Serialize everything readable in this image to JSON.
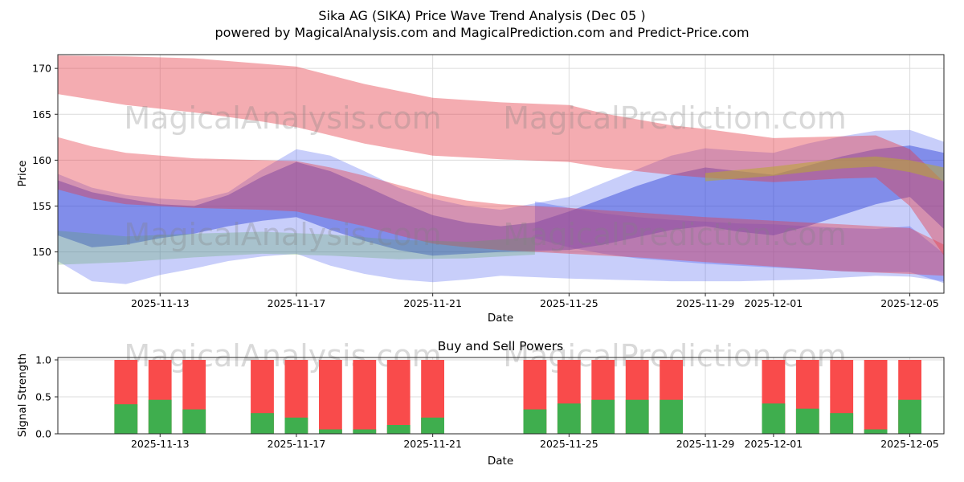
{
  "figure": {
    "title": "Sika AG (SIKA) Price Wave Trend Analysis (Dec 05 )",
    "subtitle": "powered by MagicalAnalysis.com and MagicalPrediction.com and Predict-Price.com"
  },
  "watermarks": {
    "left": "MagicalAnalysis.com",
    "right": "MagicalPrediction.com"
  },
  "chart_data": [
    {
      "type": "area",
      "name": "price-wave-trend",
      "xlabel": "Date",
      "ylabel": "Price",
      "ylim": [
        145.5,
        171.5
      ],
      "xlim_days": [
        0,
        26
      ],
      "grid": true,
      "xticks": [
        {
          "day": 3,
          "label": "2025-11-13"
        },
        {
          "day": 7,
          "label": "2025-11-17"
        },
        {
          "day": 11,
          "label": "2025-11-21"
        },
        {
          "day": 15,
          "label": "2025-11-25"
        },
        {
          "day": 19,
          "label": "2025-11-29"
        },
        {
          "day": 21,
          "label": "2025-12-01"
        },
        {
          "day": 25,
          "label": "2025-12-05"
        }
      ],
      "yticks": [
        150,
        155,
        160,
        165,
        170
      ],
      "bands": [
        {
          "name": "blue-wide",
          "color": "#4a5cf0",
          "opacity": 0.3,
          "points": [
            [
              0,
              158.5,
              149.0
            ],
            [
              1,
              157.0,
              146.8
            ],
            [
              2,
              156.2,
              146.5
            ],
            [
              3,
              155.8,
              147.5
            ],
            [
              4,
              155.6,
              148.2
            ],
            [
              5,
              156.5,
              149.0
            ],
            [
              6,
              159.0,
              149.5
            ],
            [
              7,
              161.2,
              149.8
            ],
            [
              8,
              160.5,
              148.5
            ],
            [
              9,
              158.8,
              147.6
            ],
            [
              10,
              157.0,
              147.0
            ],
            [
              11,
              155.8,
              146.7
            ],
            [
              12,
              155.0,
              147.0
            ],
            [
              13,
              154.6,
              147.4
            ],
            [
              15,
              156.0,
              147.1
            ],
            [
              16,
              157.5,
              147.0
            ],
            [
              17,
              159.0,
              146.9
            ],
            [
              18,
              160.5,
              146.8
            ],
            [
              19,
              161.3,
              146.8
            ],
            [
              20,
              161.0,
              146.8
            ],
            [
              21,
              160.8,
              146.9
            ],
            [
              22,
              161.8,
              147.0
            ],
            [
              23,
              162.6,
              147.2
            ],
            [
              24,
              163.2,
              147.4
            ],
            [
              25,
              163.3,
              147.3
            ],
            [
              26,
              162.0,
              146.8
            ]
          ]
        },
        {
          "name": "blue-core",
          "color": "#2b3fd8",
          "opacity": 0.45,
          "points": [
            [
              0,
              157.8,
              151.8
            ],
            [
              1,
              156.5,
              150.5
            ],
            [
              2,
              155.8,
              150.8
            ],
            [
              3,
              155.2,
              151.5
            ],
            [
              4,
              155.0,
              152.0
            ],
            [
              5,
              156.2,
              152.8
            ],
            [
              6,
              158.2,
              153.4
            ],
            [
              7,
              159.8,
              153.8
            ],
            [
              8,
              158.8,
              152.4
            ],
            [
              9,
              157.2,
              151.2
            ],
            [
              10,
              155.5,
              150.2
            ],
            [
              11,
              154.0,
              149.6
            ],
            [
              12,
              153.2,
              149.8
            ],
            [
              13,
              152.8,
              150.0
            ],
            [
              14,
              153.2,
              150.1
            ],
            [
              15,
              154.4,
              150.2
            ],
            [
              16,
              155.8,
              150.8
            ],
            [
              17,
              157.2,
              151.6
            ],
            [
              18,
              158.4,
              152.4
            ],
            [
              19,
              159.2,
              152.8
            ],
            [
              20,
              158.8,
              152.2
            ],
            [
              21,
              158.4,
              151.8
            ],
            [
              22,
              159.4,
              152.8
            ],
            [
              23,
              160.4,
              154.0
            ],
            [
              24,
              161.2,
              155.2
            ],
            [
              25,
              161.6,
              156.0
            ],
            [
              26,
              160.8,
              152.5
            ]
          ]
        },
        {
          "name": "blue-descending",
          "color": "#4a5cf0",
          "opacity": 0.35,
          "points": [
            [
              14,
              155.5,
              151.5
            ],
            [
              15,
              154.8,
              150.5
            ],
            [
              16,
              154.2,
              149.8
            ],
            [
              17,
              153.8,
              149.3
            ],
            [
              18,
              153.5,
              149.0
            ],
            [
              19,
              153.3,
              148.7
            ],
            [
              20,
              153.1,
              148.5
            ],
            [
              21,
              153.0,
              148.3
            ],
            [
              22,
              152.8,
              148.1
            ],
            [
              23,
              152.6,
              147.9
            ],
            [
              24,
              152.5,
              147.8
            ],
            [
              25,
              152.8,
              147.8
            ],
            [
              26,
              149.8,
              146.6
            ]
          ]
        },
        {
          "name": "red-upper",
          "color": "#e53946",
          "opacity": 0.42,
          "points": [
            [
              0,
              171.4,
              167.2
            ],
            [
              2,
              171.3,
              166.0
            ],
            [
              4,
              171.1,
              165.2
            ],
            [
              6,
              170.5,
              164.2
            ],
            [
              7,
              170.2,
              163.6
            ],
            [
              9,
              168.3,
              161.8
            ],
            [
              11,
              166.8,
              160.5
            ],
            [
              13,
              166.3,
              160.1
            ],
            [
              15,
              166.0,
              159.8
            ],
            [
              16,
              165.1,
              159.2
            ],
            [
              18,
              163.8,
              158.4
            ],
            [
              19,
              163.4,
              158.1
            ],
            [
              21,
              162.4,
              157.6
            ],
            [
              23,
              162.6,
              158.0
            ],
            [
              24,
              162.7,
              158.1
            ],
            [
              25,
              161.2,
              155.0
            ],
            [
              26,
              157.6,
              149.6
            ]
          ]
        },
        {
          "name": "red-mid",
          "color": "#e53946",
          "opacity": 0.4,
          "points": [
            [
              0,
              162.5,
              156.8
            ],
            [
              1,
              161.5,
              155.8
            ],
            [
              2,
              160.8,
              155.2
            ],
            [
              4,
              160.2,
              154.8
            ],
            [
              6,
              160.0,
              154.6
            ],
            [
              7,
              159.9,
              154.4
            ],
            [
              8,
              159.2,
              153.6
            ],
            [
              9,
              158.3,
              152.8
            ],
            [
              10,
              157.3,
              151.8
            ],
            [
              11,
              156.3,
              150.9
            ],
            [
              12,
              155.6,
              150.5
            ],
            [
              13,
              155.2,
              150.2
            ],
            [
              15,
              154.8,
              149.8
            ],
            [
              17,
              154.3,
              149.4
            ],
            [
              19,
              153.8,
              148.9
            ],
            [
              21,
              153.4,
              148.4
            ],
            [
              23,
              153.0,
              147.9
            ],
            [
              25,
              152.6,
              147.6
            ],
            [
              26,
              150.8,
              147.4
            ]
          ]
        },
        {
          "name": "green-left",
          "color": "#57a75a",
          "opacity": 0.28,
          "points": [
            [
              0,
              152.3,
              148.6
            ],
            [
              2,
              151.7,
              148.9
            ],
            [
              4,
              152.0,
              149.4
            ],
            [
              6,
              152.2,
              149.8
            ],
            [
              8,
              151.9,
              149.6
            ],
            [
              10,
              151.3,
              149.2
            ],
            [
              12,
              151.1,
              149.3
            ],
            [
              14,
              151.6,
              149.7
            ]
          ]
        },
        {
          "name": "green-right",
          "color": "#b9a832",
          "opacity": 0.55,
          "points": [
            [
              19,
              158.6,
              157.7
            ],
            [
              21,
              159.3,
              158.3
            ],
            [
              23,
              160.2,
              159.1
            ],
            [
              24,
              160.4,
              159.3
            ],
            [
              25,
              160.0,
              158.7
            ],
            [
              26,
              159.2,
              157.7
            ]
          ]
        }
      ]
    },
    {
      "type": "bar",
      "name": "buy-sell-powers",
      "title": "Buy and Sell Powers",
      "xlabel": "Date",
      "ylabel": "Signal Strength",
      "ylim": [
        0,
        1.05
      ],
      "grid": true,
      "xticks": [
        {
          "day": 3,
          "label": "2025-11-13"
        },
        {
          "day": 7,
          "label": "2025-11-17"
        },
        {
          "day": 11,
          "label": "2025-11-21"
        },
        {
          "day": 15,
          "label": "2025-11-25"
        },
        {
          "day": 19,
          "label": "2025-11-29"
        },
        {
          "day": 21,
          "label": "2025-12-01"
        },
        {
          "day": 25,
          "label": "2025-12-05"
        }
      ],
      "yticks": [
        {
          "v": 0,
          "label": "0.0"
        },
        {
          "v": 0.5,
          "label": "0.5"
        },
        {
          "v": 1,
          "label": "1.0"
        }
      ],
      "series": [
        {
          "name": "sell-power",
          "color": "#f94b4b"
        },
        {
          "name": "buy-power",
          "color": "#3fae4e"
        }
      ],
      "bars": [
        {
          "day": 2,
          "buy": 0.4,
          "sell": 1.0
        },
        {
          "day": 3,
          "buy": 0.46,
          "sell": 1.0
        },
        {
          "day": 4,
          "buy": 0.33,
          "sell": 1.0
        },
        {
          "day": 6,
          "buy": 0.28,
          "sell": 1.0
        },
        {
          "day": 7,
          "buy": 0.22,
          "sell": 1.0
        },
        {
          "day": 8,
          "buy": 0.06,
          "sell": 1.0
        },
        {
          "day": 9,
          "buy": 0.06,
          "sell": 1.0
        },
        {
          "day": 10,
          "buy": 0.12,
          "sell": 1.0
        },
        {
          "day": 11,
          "buy": 0.22,
          "sell": 1.0
        },
        {
          "day": 14,
          "buy": 0.33,
          "sell": 1.0
        },
        {
          "day": 15,
          "buy": 0.41,
          "sell": 1.0
        },
        {
          "day": 16,
          "buy": 0.46,
          "sell": 1.0
        },
        {
          "day": 17,
          "buy": 0.46,
          "sell": 1.0
        },
        {
          "day": 18,
          "buy": 0.46,
          "sell": 1.0
        },
        {
          "day": 21,
          "buy": 0.41,
          "sell": 1.0
        },
        {
          "day": 22,
          "buy": 0.34,
          "sell": 1.0
        },
        {
          "day": 23,
          "buy": 0.28,
          "sell": 1.0
        },
        {
          "day": 24,
          "buy": 0.06,
          "sell": 1.0
        },
        {
          "day": 25,
          "buy": 0.46,
          "sell": 1.0
        }
      ]
    }
  ]
}
